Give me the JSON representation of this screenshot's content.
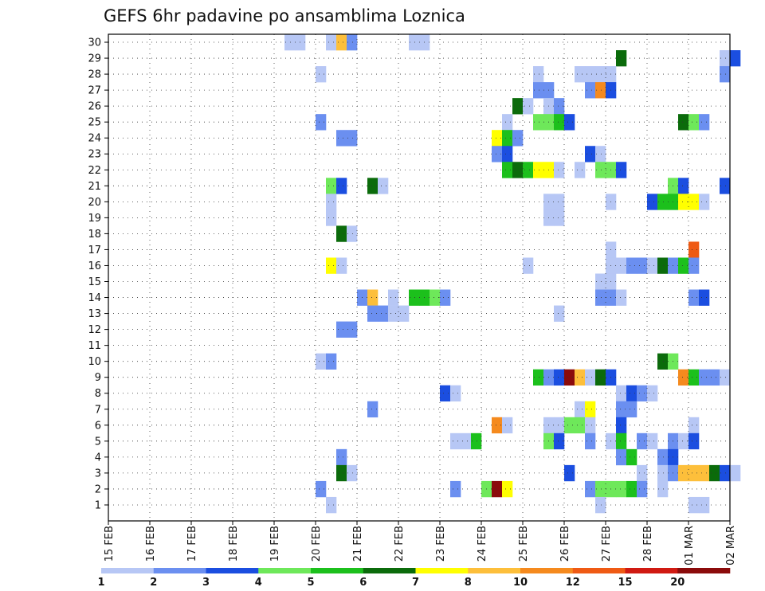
{
  "chart_data": {
    "type": "heatmap",
    "title": "GEFS 6hr padavine po ansamblima Loznica",
    "xlabel": "",
    "ylabel": "",
    "y_ticks": [
      "1",
      "2",
      "3",
      "4",
      "5",
      "6",
      "7",
      "8",
      "9",
      "10",
      "11",
      "12",
      "13",
      "14",
      "15",
      "16",
      "17",
      "18",
      "19",
      "20",
      "21",
      "22",
      "23",
      "24",
      "25",
      "26",
      "27",
      "28",
      "29",
      "30"
    ],
    "x_ticks": [
      "15 FEB",
      "16 FEB",
      "17 FEB",
      "18 FEB",
      "19 FEB",
      "20 FEB",
      "21 FEB",
      "22 FEB",
      "23 FEB",
      "24 FEB",
      "25 FEB",
      "26 FEB",
      "27 FEB",
      "28 FEB",
      "01 MAR",
      "02 MAR"
    ],
    "x_start": "2018-02-15T00:00",
    "step_hours": 6,
    "grid": true,
    "colorscale": {
      "labels": [
        "1",
        "2",
        "3",
        "4",
        "5",
        "6",
        "7",
        "8",
        "10",
        "12",
        "15",
        "20"
      ],
      "colors": [
        "#b7c7f5",
        "#6b8ff0",
        "#1b4ee0",
        "#6ee85a",
        "#1cc01c",
        "#0b6b0b",
        "#ffff00",
        "#fdbf3b",
        "#f58a1e",
        "#ef5a14",
        "#d01a12",
        "#8b0b0b"
      ]
    },
    "cells": [
      {
        "member": 30,
        "steps": [
          {
            "i": 17,
            "c": 0
          },
          {
            "i": 18,
            "c": 0
          },
          {
            "i": 21,
            "c": 0
          },
          {
            "i": 22,
            "c": 7
          },
          {
            "i": 23,
            "c": 1
          },
          {
            "i": 29,
            "c": 0
          },
          {
            "i": 30,
            "c": 0
          }
        ]
      },
      {
        "member": 29,
        "steps": [
          {
            "i": 49,
            "c": 5
          },
          {
            "i": 59,
            "c": 0
          },
          {
            "i": 60,
            "c": 2
          }
        ]
      },
      {
        "member": 28,
        "steps": [
          {
            "i": 20,
            "c": 0
          },
          {
            "i": 41,
            "c": 0
          },
          {
            "i": 45,
            "c": 0
          },
          {
            "i": 46,
            "c": 0
          },
          {
            "i": 47,
            "c": 0
          },
          {
            "i": 48,
            "c": 0
          },
          {
            "i": 59,
            "c": 1
          }
        ]
      },
      {
        "member": 27,
        "steps": [
          {
            "i": 41,
            "c": 1
          },
          {
            "i": 42,
            "c": 1
          },
          {
            "i": 46,
            "c": 1
          },
          {
            "i": 47,
            "c": 8
          },
          {
            "i": 48,
            "c": 2
          }
        ]
      },
      {
        "member": 26,
        "steps": [
          {
            "i": 39,
            "c": 5
          },
          {
            "i": 40,
            "c": 0
          },
          {
            "i": 42,
            "c": 0
          },
          {
            "i": 43,
            "c": 1
          }
        ]
      },
      {
        "member": 25,
        "steps": [
          {
            "i": 20,
            "c": 1
          },
          {
            "i": 38,
            "c": 0
          },
          {
            "i": 41,
            "c": 3
          },
          {
            "i": 42,
            "c": 3
          },
          {
            "i": 43,
            "c": 4
          },
          {
            "i": 44,
            "c": 2
          },
          {
            "i": 55,
            "c": 5
          },
          {
            "i": 56,
            "c": 3
          },
          {
            "i": 57,
            "c": 1
          }
        ]
      },
      {
        "member": 24,
        "steps": [
          {
            "i": 22,
            "c": 1
          },
          {
            "i": 23,
            "c": 1
          },
          {
            "i": 37,
            "c": 6
          },
          {
            "i": 38,
            "c": 4
          },
          {
            "i": 39,
            "c": 1
          }
        ]
      },
      {
        "member": 23,
        "steps": [
          {
            "i": 37,
            "c": 1
          },
          {
            "i": 38,
            "c": 2
          },
          {
            "i": 46,
            "c": 2
          },
          {
            "i": 47,
            "c": 0
          }
        ]
      },
      {
        "member": 22,
        "steps": [
          {
            "i": 38,
            "c": 4
          },
          {
            "i": 39,
            "c": 5
          },
          {
            "i": 40,
            "c": 4
          },
          {
            "i": 41,
            "c": 6
          },
          {
            "i": 42,
            "c": 6
          },
          {
            "i": 43,
            "c": 0
          },
          {
            "i": 45,
            "c": 0
          },
          {
            "i": 47,
            "c": 3
          },
          {
            "i": 48,
            "c": 3
          },
          {
            "i": 49,
            "c": 2
          }
        ]
      },
      {
        "member": 21,
        "steps": [
          {
            "i": 21,
            "c": 3
          },
          {
            "i": 22,
            "c": 2
          },
          {
            "i": 25,
            "c": 5
          },
          {
            "i": 26,
            "c": 0
          },
          {
            "i": 54,
            "c": 3
          },
          {
            "i": 55,
            "c": 2
          },
          {
            "i": 59,
            "c": 2
          }
        ]
      },
      {
        "member": 20,
        "steps": [
          {
            "i": 21,
            "c": 0
          },
          {
            "i": 42,
            "c": 0
          },
          {
            "i": 43,
            "c": 0
          },
          {
            "i": 48,
            "c": 0
          },
          {
            "i": 52,
            "c": 2
          },
          {
            "i": 53,
            "c": 4
          },
          {
            "i": 54,
            "c": 4
          },
          {
            "i": 55,
            "c": 6
          },
          {
            "i": 56,
            "c": 6
          },
          {
            "i": 57,
            "c": 0
          }
        ]
      },
      {
        "member": 19,
        "steps": [
          {
            "i": 21,
            "c": 0
          },
          {
            "i": 42,
            "c": 0
          },
          {
            "i": 43,
            "c": 0
          }
        ]
      },
      {
        "member": 18,
        "steps": [
          {
            "i": 22,
            "c": 5
          },
          {
            "i": 23,
            "c": 0
          }
        ]
      },
      {
        "member": 17,
        "steps": [
          {
            "i": 48,
            "c": 0
          },
          {
            "i": 56,
            "c": 9
          }
        ]
      },
      {
        "member": 16,
        "steps": [
          {
            "i": 21,
            "c": 6
          },
          {
            "i": 22,
            "c": 0
          },
          {
            "i": 40,
            "c": 0
          },
          {
            "i": 48,
            "c": 0
          },
          {
            "i": 49,
            "c": 0
          },
          {
            "i": 50,
            "c": 1
          },
          {
            "i": 51,
            "c": 1
          },
          {
            "i": 52,
            "c": 0
          },
          {
            "i": 53,
            "c": 5
          },
          {
            "i": 54,
            "c": 1
          },
          {
            "i": 55,
            "c": 4
          },
          {
            "i": 56,
            "c": 1
          }
        ]
      },
      {
        "member": 15,
        "steps": [
          {
            "i": 47,
            "c": 0
          },
          {
            "i": 48,
            "c": 0
          }
        ]
      },
      {
        "member": 14,
        "steps": [
          {
            "i": 24,
            "c": 1
          },
          {
            "i": 25,
            "c": 7
          },
          {
            "i": 27,
            "c": 0
          },
          {
            "i": 29,
            "c": 4
          },
          {
            "i": 30,
            "c": 4
          },
          {
            "i": 31,
            "c": 3
          },
          {
            "i": 32,
            "c": 1
          },
          {
            "i": 47,
            "c": 1
          },
          {
            "i": 48,
            "c": 1
          },
          {
            "i": 49,
            "c": 0
          },
          {
            "i": 56,
            "c": 1
          },
          {
            "i": 57,
            "c": 2
          }
        ]
      },
      {
        "member": 13,
        "steps": [
          {
            "i": 25,
            "c": 1
          },
          {
            "i": 26,
            "c": 1
          },
          {
            "i": 27,
            "c": 0
          },
          {
            "i": 28,
            "c": 0
          },
          {
            "i": 43,
            "c": 0
          }
        ]
      },
      {
        "member": 12,
        "steps": [
          {
            "i": 22,
            "c": 1
          },
          {
            "i": 23,
            "c": 1
          }
        ]
      },
      {
        "member": 11,
        "steps": []
      },
      {
        "member": 10,
        "steps": [
          {
            "i": 20,
            "c": 0
          },
          {
            "i": 21,
            "c": 1
          },
          {
            "i": 53,
            "c": 5
          },
          {
            "i": 54,
            "c": 3
          }
        ]
      },
      {
        "member": 9,
        "steps": [
          {
            "i": 41,
            "c": 4
          },
          {
            "i": 42,
            "c": 1
          },
          {
            "i": 43,
            "c": 2
          },
          {
            "i": 44,
            "c": 11
          },
          {
            "i": 45,
            "c": 7
          },
          {
            "i": 46,
            "c": 0
          },
          {
            "i": 47,
            "c": 5
          },
          {
            "i": 48,
            "c": 2
          },
          {
            "i": 55,
            "c": 8
          },
          {
            "i": 56,
            "c": 4
          },
          {
            "i": 57,
            "c": 1
          },
          {
            "i": 58,
            "c": 1
          },
          {
            "i": 59,
            "c": 0
          }
        ]
      },
      {
        "member": 8,
        "steps": [
          {
            "i": 32,
            "c": 2
          },
          {
            "i": 33,
            "c": 0
          },
          {
            "i": 49,
            "c": 0
          },
          {
            "i": 50,
            "c": 2
          },
          {
            "i": 51,
            "c": 1
          },
          {
            "i": 52,
            "c": 0
          }
        ]
      },
      {
        "member": 7,
        "steps": [
          {
            "i": 25,
            "c": 1
          },
          {
            "i": 45,
            "c": 0
          },
          {
            "i": 46,
            "c": 6
          },
          {
            "i": 49,
            "c": 1
          },
          {
            "i": 50,
            "c": 1
          }
        ]
      },
      {
        "member": 6,
        "steps": [
          {
            "i": 37,
            "c": 8
          },
          {
            "i": 38,
            "c": 0
          },
          {
            "i": 42,
            "c": 0
          },
          {
            "i": 43,
            "c": 0
          },
          {
            "i": 44,
            "c": 3
          },
          {
            "i": 45,
            "c": 3
          },
          {
            "i": 46,
            "c": 0
          },
          {
            "i": 49,
            "c": 2
          },
          {
            "i": 56,
            "c": 0
          }
        ]
      },
      {
        "member": 5,
        "steps": [
          {
            "i": 33,
            "c": 0
          },
          {
            "i": 34,
            "c": 0
          },
          {
            "i": 35,
            "c": 4
          },
          {
            "i": 42,
            "c": 3
          },
          {
            "i": 43,
            "c": 2
          },
          {
            "i": 46,
            "c": 1
          },
          {
            "i": 48,
            "c": 0
          },
          {
            "i": 49,
            "c": 4
          },
          {
            "i": 51,
            "c": 1
          },
          {
            "i": 52,
            "c": 0
          },
          {
            "i": 54,
            "c": 1
          },
          {
            "i": 55,
            "c": 0
          },
          {
            "i": 56,
            "c": 2
          }
        ]
      },
      {
        "member": 4,
        "steps": [
          {
            "i": 22,
            "c": 1
          },
          {
            "i": 49,
            "c": 1
          },
          {
            "i": 50,
            "c": 4
          },
          {
            "i": 53,
            "c": 1
          },
          {
            "i": 54,
            "c": 2
          }
        ]
      },
      {
        "member": 3,
        "steps": [
          {
            "i": 22,
            "c": 5
          },
          {
            "i": 23,
            "c": 0
          },
          {
            "i": 44,
            "c": 2
          },
          {
            "i": 51,
            "c": 0
          },
          {
            "i": 53,
            "c": 0
          },
          {
            "i": 54,
            "c": 1
          },
          {
            "i": 55,
            "c": 7
          },
          {
            "i": 56,
            "c": 7
          },
          {
            "i": 57,
            "c": 7
          },
          {
            "i": 58,
            "c": 5
          },
          {
            "i": 59,
            "c": 2
          },
          {
            "i": 60,
            "c": 0
          }
        ]
      },
      {
        "member": 2,
        "steps": [
          {
            "i": 20,
            "c": 1
          },
          {
            "i": 33,
            "c": 1
          },
          {
            "i": 36,
            "c": 3
          },
          {
            "i": 37,
            "c": 11
          },
          {
            "i": 38,
            "c": 6
          },
          {
            "i": 46,
            "c": 1
          },
          {
            "i": 47,
            "c": 3
          },
          {
            "i": 48,
            "c": 3
          },
          {
            "i": 49,
            "c": 3
          },
          {
            "i": 50,
            "c": 4
          },
          {
            "i": 51,
            "c": 1
          },
          {
            "i": 53,
            "c": 0
          }
        ]
      },
      {
        "member": 1,
        "steps": [
          {
            "i": 21,
            "c": 0
          },
          {
            "i": 47,
            "c": 0
          },
          {
            "i": 56,
            "c": 0
          },
          {
            "i": 57,
            "c": 0
          }
        ]
      }
    ]
  }
}
